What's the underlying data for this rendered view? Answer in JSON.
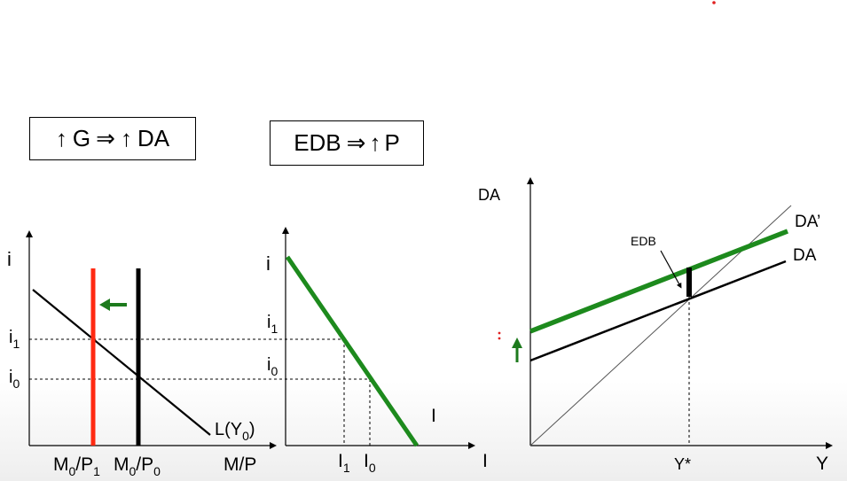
{
  "headline_boxes": {
    "left": {
      "up_arrow_1": "↑",
      "g": "G",
      "implies": "⇒",
      "up_arrow_2": "↑",
      "da": "DA"
    },
    "right": {
      "edb": "EDB",
      "implies": "⇒",
      "up_arrow": "↑",
      "p": "P"
    }
  },
  "money_panel": {
    "y_axis": "i",
    "x_axis": "M/P",
    "i1": {
      "base": "i",
      "sub": "1"
    },
    "i0": {
      "base": "i",
      "sub": "0"
    },
    "m1": {
      "m": "M",
      "m_sub": "0",
      "slash": "/P",
      "p_sub": "1"
    },
    "m0": {
      "m": "M",
      "m_sub": "0",
      "slash": "/P",
      "p_sub": "0"
    },
    "curve": {
      "base": "L(Y",
      "sub": "0",
      "close": ")"
    },
    "colors": {
      "new_supply": "#ff2a12",
      "shift_arrow": "#1d7a1d",
      "curve": "#000000"
    }
  },
  "investment_panel": {
    "y_axis": "i",
    "x_axis": "I",
    "i1": {
      "base": "i",
      "sub": "1"
    },
    "i0": {
      "base": "i",
      "sub": "0"
    },
    "inv1": {
      "base": "I",
      "sub": "1"
    },
    "inv0": {
      "base": "I",
      "sub": "0"
    },
    "curve": "I",
    "colors": {
      "curve": "#1d8a1d"
    }
  },
  "keynesian_cross": {
    "y_axis": "DA",
    "x_axis": "Y",
    "equilibrium": "Y*",
    "gap_label": "EDB",
    "da_new": "DA’",
    "da_old": "DA",
    "colors": {
      "da_new": "#1d8a1d",
      "up_arrow": "#1d7a1d",
      "da_old": "#000000"
    }
  }
}
